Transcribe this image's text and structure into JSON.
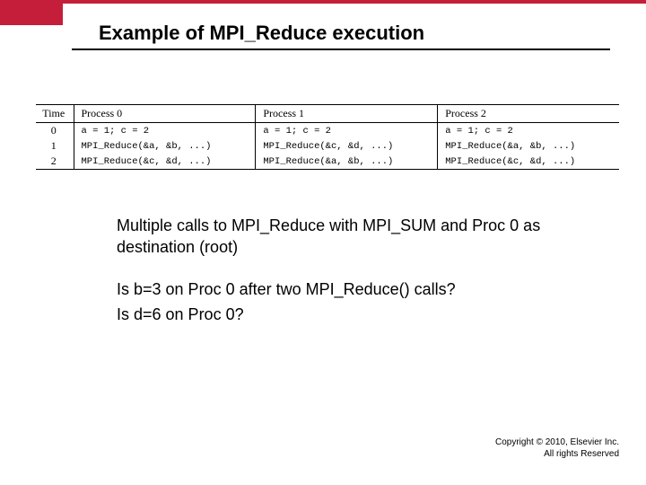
{
  "title": "Example  of MPI_Reduce execution",
  "table": {
    "headers": {
      "time": "Time",
      "p0": "Process 0",
      "p1": "Process 1",
      "p2": "Process 2"
    },
    "rows": [
      {
        "time": "0",
        "p0": "a = 1; c = 2",
        "p1": "a = 1; c = 2",
        "p2": "a = 1; c = 2"
      },
      {
        "time": "1",
        "p0": "MPI_Reduce(&a, &b, ...)",
        "p1": "MPI_Reduce(&c, &d, ...)",
        "p2": "MPI_Reduce(&a, &b, ...)"
      },
      {
        "time": "2",
        "p0": "MPI_Reduce(&c, &d, ...)",
        "p1": "MPI_Reduce(&a, &b, ...)",
        "p2": "MPI_Reduce(&c, &d, ...)"
      }
    ]
  },
  "body": {
    "para1": "Multiple calls to MPI_Reduce with MPI_SUM and Proc 0 as destination (root)",
    "q1": "Is b=3  on Proc 0 after two MPI_Reduce() calls?",
    "q2": "Is d=6 on Proc 0?"
  },
  "copyright": {
    "line1": "Copyright © 2010, Elsevier Inc.",
    "line2": "All rights Reserved"
  },
  "styling": {
    "accent_color": "#c41e3a",
    "background": "#ffffff",
    "title_fontsize": 22,
    "body_fontsize": 18,
    "table_serif": "Times New Roman",
    "table_mono": "Courier New",
    "table_fontsize": 12,
    "cell_fontsize": 10.5
  }
}
